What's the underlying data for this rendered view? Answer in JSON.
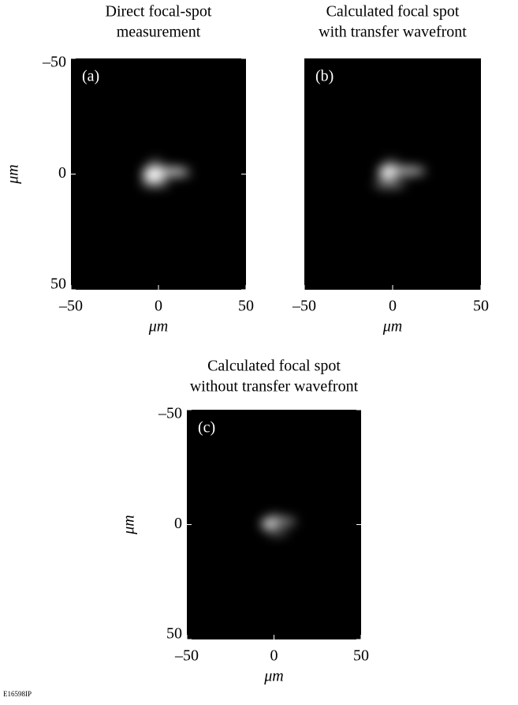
{
  "figure_id": "E16598IP",
  "chart_data": [
    {
      "type": "image",
      "title": [
        "Direct focal-spot",
        "measurement"
      ],
      "panel_label": "(a)",
      "xlabel": "μm",
      "ylabel": "μm",
      "xlim": [
        -50,
        50
      ],
      "ylim": [
        -50,
        50
      ],
      "y_inverted": true,
      "xticks": [
        {
          "value": -50,
          "label": "–50"
        },
        0,
        50
      ],
      "yticks": [
        {
          "value": -50,
          "label": "–50"
        },
        0,
        50
      ]
    },
    {
      "type": "image",
      "title": [
        "Calculated focal spot",
        "with transfer wavefront"
      ],
      "panel_label": "(b)",
      "xlabel": "μm",
      "xlim": [
        -50,
        50
      ],
      "ylim": [
        -50,
        50
      ],
      "y_inverted": true,
      "xticks": [
        {
          "value": -50,
          "label": "–50"
        },
        0,
        50
      ]
    },
    {
      "type": "image",
      "title": [
        "Calculated focal spot",
        "without transfer wavefront"
      ],
      "panel_label": "(c)",
      "xlabel": "μm",
      "ylabel": "μm",
      "xlim": [
        -50,
        50
      ],
      "ylim": [
        -50,
        50
      ],
      "y_inverted": true,
      "xticks": [
        {
          "value": -50,
          "label": "–50"
        },
        0,
        50
      ],
      "yticks": [
        {
          "value": -50,
          "label": "–50"
        },
        0,
        50
      ]
    }
  ]
}
